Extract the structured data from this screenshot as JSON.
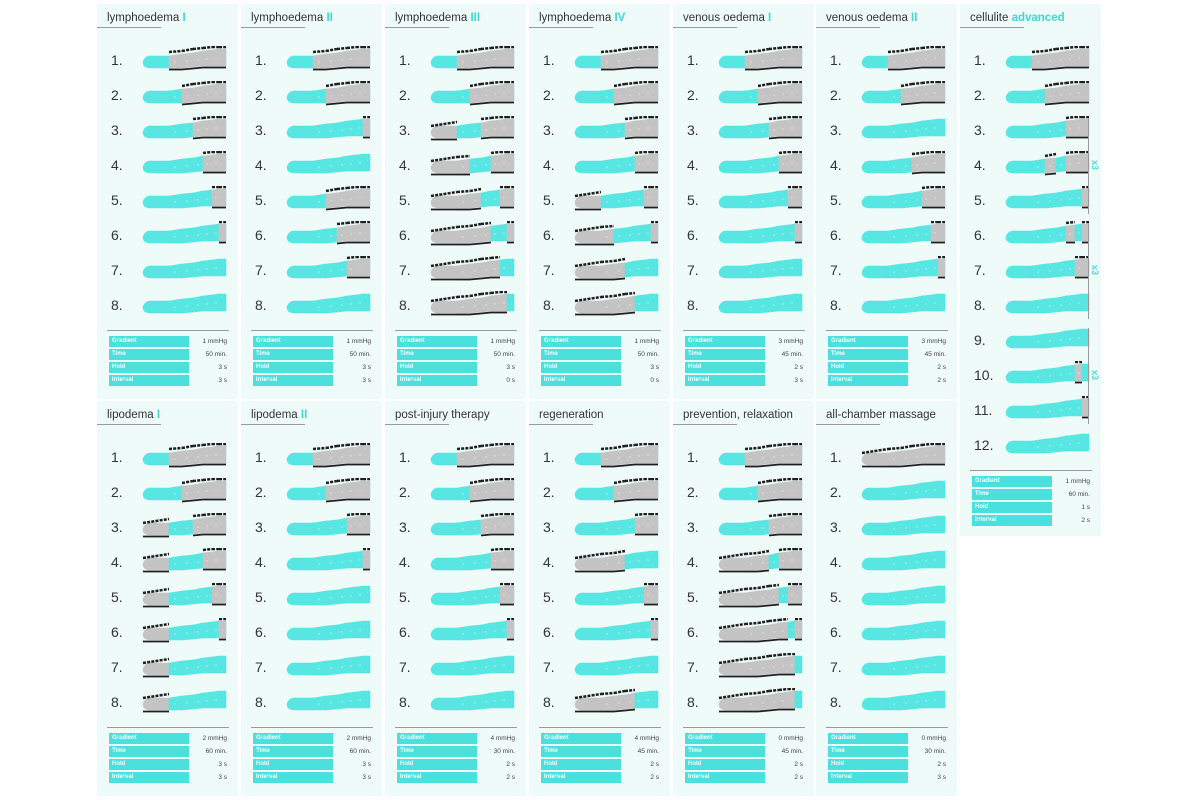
{
  "colors": {
    "active": "#57e6e1",
    "inactive": "#c4c4c4",
    "outline": "#1f1f1f",
    "accent": "#3fd8d4",
    "card_bg": "#eefbf8",
    "table_label": "#49e0de"
  },
  "param_labels": [
    "Gradient",
    "Time",
    "Hold",
    "Interval"
  ],
  "programs": [
    {
      "title": "lymphoedema",
      "suffix": "I",
      "steps": 8,
      "params": [
        "1 mmHg",
        "50 min.",
        "3 s",
        "3 s"
      ],
      "pattern": [
        [
          1,
          0,
          0,
          0,
          0,
          0,
          0
        ],
        [
          1,
          1,
          0,
          0,
          0,
          0,
          0
        ],
        [
          1,
          1,
          1,
          0,
          0,
          0,
          0
        ],
        [
          1,
          1,
          1,
          1,
          0,
          0,
          0
        ],
        [
          1,
          1,
          1,
          1,
          1,
          0,
          0
        ],
        [
          1,
          1,
          1,
          1,
          1,
          1,
          0
        ],
        [
          1,
          1,
          1,
          1,
          1,
          1,
          1
        ],
        [
          1,
          1,
          1,
          1,
          1,
          1,
          1
        ]
      ]
    },
    {
      "title": "lymphoedema",
      "suffix": "II",
      "steps": 8,
      "params": [
        "1 mmHg",
        "50 min.",
        "3 s",
        "3 s"
      ],
      "pattern": [
        [
          1,
          0,
          0,
          0,
          0,
          0,
          0
        ],
        [
          1,
          1,
          0,
          0,
          0,
          0,
          0
        ],
        [
          1,
          1,
          1,
          1,
          1,
          1,
          0
        ],
        [
          1,
          1,
          1,
          1,
          1,
          1,
          1
        ],
        [
          1,
          1,
          0,
          0,
          0,
          0,
          0
        ],
        [
          1,
          1,
          1,
          0,
          0,
          0,
          0
        ],
        [
          1,
          1,
          1,
          1,
          0,
          0,
          0
        ],
        [
          1,
          1,
          1,
          1,
          1,
          1,
          1
        ]
      ]
    },
    {
      "title": "lymphoedema",
      "suffix": "III",
      "steps": 8,
      "params": [
        "1 mmHg",
        "50 min.",
        "3 s",
        "0 s"
      ],
      "pattern": [
        [
          1,
          0,
          0,
          0,
          0,
          0,
          0
        ],
        [
          1,
          1,
          0,
          0,
          0,
          0,
          0
        ],
        [
          0,
          1,
          1,
          0,
          0,
          0,
          0
        ],
        [
          0,
          0,
          1,
          1,
          0,
          0,
          0
        ],
        [
          0,
          0,
          0,
          1,
          1,
          0,
          0
        ],
        [
          0,
          0,
          0,
          0,
          1,
          1,
          0
        ],
        [
          0,
          0,
          0,
          0,
          0,
          1,
          1
        ],
        [
          0,
          0,
          0,
          0,
          0,
          0,
          1
        ]
      ]
    },
    {
      "title": "lymphoedema",
      "suffix": "IV",
      "steps": 8,
      "params": [
        "1 mmHg",
        "50 min.",
        "3 s",
        "0 s"
      ],
      "pattern": [
        [
          1,
          0,
          0,
          0,
          0,
          0,
          0
        ],
        [
          1,
          1,
          0,
          0,
          0,
          0,
          0
        ],
        [
          1,
          1,
          1,
          0,
          0,
          0,
          0
        ],
        [
          1,
          1,
          1,
          1,
          0,
          0,
          0
        ],
        [
          0,
          1,
          1,
          1,
          1,
          0,
          0
        ],
        [
          0,
          0,
          1,
          1,
          1,
          1,
          0
        ],
        [
          0,
          0,
          0,
          1,
          1,
          1,
          1
        ],
        [
          0,
          0,
          0,
          0,
          1,
          1,
          1
        ]
      ]
    },
    {
      "title": "venous oedema",
      "suffix": "I",
      "steps": 8,
      "params": [
        "3 mmHg",
        "45 min.",
        "2 s",
        "3 s"
      ],
      "pattern": [
        [
          1,
          0,
          0,
          0,
          0,
          0,
          0
        ],
        [
          1,
          1,
          0,
          0,
          0,
          0,
          0
        ],
        [
          1,
          1,
          1,
          0,
          0,
          0,
          0
        ],
        [
          1,
          1,
          1,
          1,
          0,
          0,
          0
        ],
        [
          1,
          1,
          1,
          1,
          1,
          0,
          0
        ],
        [
          1,
          1,
          1,
          1,
          1,
          1,
          0
        ],
        [
          1,
          1,
          1,
          1,
          1,
          1,
          1
        ],
        [
          1,
          1,
          1,
          1,
          1,
          1,
          1
        ]
      ]
    },
    {
      "title": "venous oedema",
      "suffix": "II",
      "steps": 8,
      "params": [
        "3 mmHg",
        "45 min.",
        "2 s",
        "2 s"
      ],
      "pattern": [
        [
          1,
          0,
          0,
          0,
          0,
          0,
          0
        ],
        [
          1,
          1,
          0,
          0,
          0,
          0,
          0
        ],
        [
          1,
          1,
          1,
          1,
          1,
          1,
          1
        ],
        [
          1,
          1,
          1,
          0,
          0,
          0,
          0
        ],
        [
          1,
          1,
          1,
          1,
          0,
          0,
          0
        ],
        [
          1,
          1,
          1,
          1,
          1,
          0,
          0
        ],
        [
          1,
          1,
          1,
          1,
          1,
          1,
          0
        ],
        [
          1,
          1,
          1,
          1,
          1,
          1,
          1
        ]
      ]
    },
    {
      "title": "cellulite",
      "suffix": "advanced",
      "steps": 12,
      "params": [
        "1 mmHg",
        "60 min.",
        "1 s",
        "2 s"
      ],
      "pattern": [
        [
          1,
          0,
          0,
          0,
          0,
          0,
          0
        ],
        [
          1,
          1,
          0,
          0,
          0,
          0,
          0
        ],
        [
          1,
          1,
          1,
          1,
          0,
          0,
          0
        ],
        [
          1,
          1,
          0,
          1,
          0,
          0,
          0
        ],
        [
          1,
          1,
          1,
          1,
          1,
          1,
          0
        ],
        [
          1,
          1,
          1,
          1,
          0,
          1,
          0
        ],
        [
          1,
          1,
          1,
          1,
          1,
          0,
          0
        ],
        [
          1,
          1,
          1,
          1,
          1,
          1,
          1
        ],
        [
          1,
          1,
          1,
          1,
          1,
          1,
          1
        ],
        [
          1,
          1,
          1,
          1,
          1,
          0,
          1
        ],
        [
          1,
          1,
          1,
          1,
          1,
          1,
          0
        ],
        [
          1,
          1,
          1,
          1,
          1,
          1,
          1
        ]
      ]
    },
    {
      "title": "lipodema",
      "suffix": "I",
      "steps": 8,
      "params": [
        "2 mmHg",
        "60 min.",
        "3 s",
        "3 s"
      ],
      "pattern": [
        [
          1,
          0,
          0,
          0,
          0,
          0,
          0
        ],
        [
          1,
          1,
          0,
          0,
          0,
          0,
          0
        ],
        [
          0,
          1,
          1,
          0,
          0,
          0,
          0
        ],
        [
          0,
          1,
          1,
          1,
          0,
          0,
          0
        ],
        [
          0,
          1,
          1,
          1,
          1,
          0,
          0
        ],
        [
          0,
          1,
          1,
          1,
          1,
          1,
          0
        ],
        [
          0,
          1,
          1,
          1,
          1,
          1,
          1
        ],
        [
          0,
          1,
          1,
          1,
          1,
          1,
          1
        ]
      ]
    },
    {
      "title": "lipodema",
      "suffix": "II",
      "steps": 8,
      "params": [
        "2 mmHg",
        "60 min.",
        "3 s",
        "3 s"
      ],
      "pattern": [
        [
          1,
          0,
          0,
          0,
          0,
          0,
          0
        ],
        [
          1,
          1,
          0,
          0,
          0,
          0,
          0
        ],
        [
          1,
          1,
          1,
          1,
          0,
          0,
          0
        ],
        [
          1,
          1,
          1,
          1,
          1,
          1,
          0
        ],
        [
          1,
          1,
          1,
          1,
          1,
          1,
          1
        ],
        [
          1,
          1,
          1,
          1,
          1,
          1,
          1
        ],
        [
          1,
          1,
          1,
          1,
          1,
          1,
          1
        ],
        [
          1,
          1,
          1,
          1,
          1,
          1,
          1
        ]
      ]
    },
    {
      "title": "post-injury therapy",
      "suffix": "",
      "steps": 8,
      "params": [
        "4 mmHg",
        "30 min.",
        "2 s",
        "2 s"
      ],
      "pattern": [
        [
          1,
          0,
          0,
          0,
          0,
          0,
          0
        ],
        [
          1,
          1,
          0,
          0,
          0,
          0,
          0
        ],
        [
          1,
          1,
          1,
          0,
          0,
          0,
          0
        ],
        [
          1,
          1,
          1,
          1,
          0,
          0,
          0
        ],
        [
          1,
          1,
          1,
          1,
          1,
          0,
          0
        ],
        [
          1,
          1,
          1,
          1,
          1,
          1,
          0
        ],
        [
          1,
          1,
          1,
          1,
          1,
          1,
          1
        ],
        [
          1,
          1,
          1,
          1,
          1,
          1,
          1
        ]
      ]
    },
    {
      "title": "regeneration",
      "suffix": "",
      "steps": 8,
      "params": [
        "4 mmHg",
        "45 min.",
        "2 s",
        "2 s"
      ],
      "pattern": [
        [
          1,
          0,
          0,
          0,
          0,
          0,
          0
        ],
        [
          1,
          1,
          0,
          0,
          0,
          0,
          0
        ],
        [
          1,
          1,
          1,
          1,
          0,
          0,
          0
        ],
        [
          0,
          0,
          0,
          1,
          1,
          1,
          1
        ],
        [
          1,
          1,
          1,
          1,
          1,
          0,
          0
        ],
        [
          1,
          1,
          1,
          1,
          1,
          1,
          0
        ],
        [
          1,
          1,
          1,
          1,
          1,
          1,
          1
        ],
        [
          0,
          0,
          0,
          0,
          1,
          1,
          1
        ]
      ]
    },
    {
      "title": "prevention, relaxation",
      "suffix": "",
      "steps": 8,
      "params": [
        "0 mmHg",
        "45 min.",
        "2 s",
        "2 s"
      ],
      "pattern": [
        [
          1,
          0,
          0,
          0,
          0,
          0,
          0
        ],
        [
          1,
          1,
          0,
          0,
          0,
          0,
          0
        ],
        [
          1,
          1,
          1,
          0,
          0,
          0,
          0
        ],
        [
          0,
          0,
          0,
          1,
          0,
          0,
          0
        ],
        [
          0,
          0,
          0,
          0,
          1,
          0,
          0
        ],
        [
          0,
          0,
          0,
          0,
          0,
          1,
          0
        ],
        [
          0,
          0,
          0,
          0,
          0,
          0,
          1
        ],
        [
          0,
          0,
          0,
          0,
          0,
          0,
          1
        ]
      ]
    },
    {
      "title": "all-chamber massage",
      "suffix": "",
      "steps": 8,
      "params": [
        "0 mmHg",
        "30 min.",
        "2 s",
        "3 s"
      ],
      "pattern": [
        [
          0,
          0,
          0,
          0,
          0,
          0,
          0
        ],
        [
          1,
          1,
          1,
          1,
          1,
          1,
          1
        ],
        [
          1,
          1,
          1,
          1,
          1,
          1,
          1
        ],
        [
          1,
          1,
          1,
          1,
          1,
          1,
          1
        ],
        [
          1,
          1,
          1,
          1,
          1,
          1,
          1
        ],
        [
          1,
          1,
          1,
          1,
          1,
          1,
          1
        ],
        [
          1,
          1,
          1,
          1,
          1,
          1,
          1
        ],
        [
          1,
          1,
          1,
          1,
          1,
          1,
          1
        ]
      ]
    }
  ],
  "repeat_marks": [
    {
      "label": "x3",
      "from_step": 3,
      "to_step": 5
    },
    {
      "label": "x3",
      "from_step": 6,
      "to_step": 8
    },
    {
      "label": "x3",
      "from_step": 9,
      "to_step": 11
    }
  ]
}
